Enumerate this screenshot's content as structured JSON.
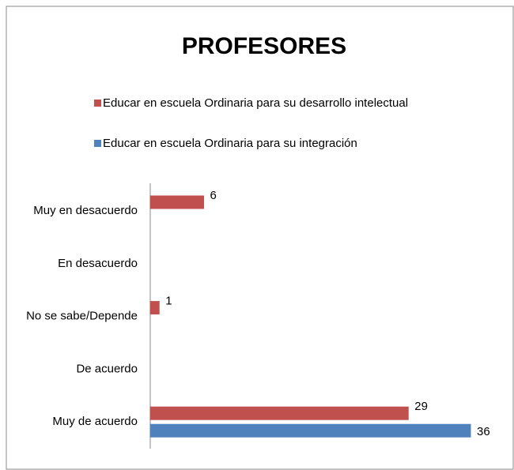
{
  "chart_data": {
    "type": "barh",
    "title": "PROFESORES",
    "categories": [
      "Muy en desacuerdo",
      "En desacuerdo",
      "No se sabe/Depende",
      "De acuerdo",
      "Muy de acuerdo"
    ],
    "series": [
      {
        "name": "Educar en escuela Ordinaria para su desarrollo intelectual",
        "color": "#c0504d",
        "values": [
          6,
          null,
          1,
          null,
          29
        ]
      },
      {
        "name": "Educar en escuela Ordinaria para su integración",
        "color": "#4f81bd",
        "values": [
          null,
          null,
          null,
          null,
          36
        ]
      }
    ],
    "legend": "top"
  }
}
